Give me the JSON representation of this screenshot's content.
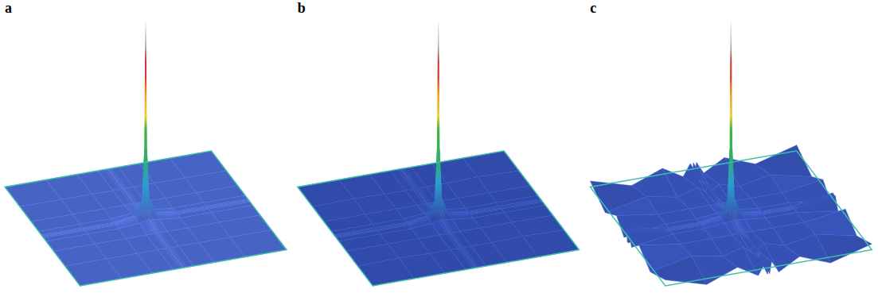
{
  "chart_data": [
    {
      "type": "surface",
      "title": "a",
      "tick_labels": false,
      "color": "#4763c3",
      "x": [
        -1,
        -0.6,
        -0.3,
        -0.1,
        -0.03,
        -0.01,
        0,
        0.01,
        0.03,
        0.1,
        0.3,
        0.6,
        1
      ],
      "y": [
        -1,
        -0.6,
        -0.3,
        -0.1,
        -0.03,
        -0.01,
        0,
        0.01,
        0.03,
        0.1,
        0.3,
        0.6,
        1
      ],
      "xlim": [
        -1,
        1
      ],
      "ylim": [
        -1,
        1
      ],
      "zlim": [
        -0.05,
        1
      ],
      "z": [
        [
          0,
          0,
          0,
          0,
          0,
          0,
          0,
          0,
          0,
          0,
          0,
          0,
          0
        ],
        [
          0,
          0,
          0,
          0,
          0,
          0,
          0,
          0,
          0,
          0,
          0,
          0,
          0
        ],
        [
          0,
          0,
          0,
          0,
          0,
          0,
          0,
          0,
          0,
          0,
          0,
          0,
          0
        ],
        [
          0,
          0,
          0,
          0.01,
          0.015,
          0.02,
          0.02,
          0.02,
          0.015,
          0.01,
          0,
          0,
          0
        ],
        [
          0,
          0,
          0,
          0.015,
          0.06,
          0.09,
          0.1,
          0.09,
          0.06,
          0.015,
          0,
          0,
          0
        ],
        [
          0,
          0,
          0,
          0.02,
          0.09,
          0.3,
          0.35,
          0.3,
          0.09,
          0.02,
          0,
          0,
          0
        ],
        [
          0,
          0,
          0,
          0.02,
          0.1,
          0.35,
          1,
          0.35,
          0.1,
          0.02,
          0,
          0,
          0
        ],
        [
          0,
          0,
          0,
          0.02,
          0.09,
          0.3,
          0.35,
          0.3,
          0.09,
          0.02,
          0,
          0,
          0
        ],
        [
          0,
          0,
          0,
          0.015,
          0.06,
          0.09,
          0.1,
          0.09,
          0.06,
          0.015,
          0,
          0,
          0
        ],
        [
          0,
          0,
          0,
          0.01,
          0.015,
          0.02,
          0.02,
          0.02,
          0.015,
          0.01,
          0,
          0,
          0
        ],
        [
          0,
          0,
          0,
          0,
          0,
          0,
          0,
          0,
          0,
          0,
          0,
          0,
          0
        ],
        [
          0,
          0,
          0,
          0,
          0,
          0,
          0,
          0,
          0,
          0,
          0,
          0,
          0
        ],
        [
          0,
          0,
          0,
          0,
          0,
          0,
          0,
          0,
          0,
          0,
          0,
          0,
          0
        ]
      ]
    },
    {
      "type": "surface",
      "title": "b",
      "tick_labels": false,
      "color": "#2f4aa8",
      "x": [
        -1,
        -0.6,
        -0.3,
        -0.1,
        -0.03,
        -0.01,
        0,
        0.01,
        0.03,
        0.1,
        0.3,
        0.6,
        1
      ],
      "y": [
        -1,
        -0.6,
        -0.3,
        -0.1,
        -0.03,
        -0.01,
        0,
        0.01,
        0.03,
        0.1,
        0.3,
        0.6,
        1
      ],
      "xlim": [
        -1,
        1
      ],
      "ylim": [
        -1,
        1
      ],
      "zlim": [
        -0.05,
        1
      ],
      "z": [
        [
          0,
          0,
          0,
          0,
          0,
          0,
          0,
          0,
          0,
          0,
          0,
          0,
          0
        ],
        [
          0,
          0.005,
          0,
          0,
          0,
          0,
          0.005,
          0,
          0,
          0,
          0,
          0.005,
          0
        ],
        [
          0,
          0,
          0,
          0,
          0,
          0,
          0,
          0,
          0,
          0,
          0,
          0,
          0
        ],
        [
          0,
          0,
          0,
          0.01,
          0.015,
          0.02,
          0.02,
          0.02,
          0.015,
          0.01,
          0,
          0,
          0
        ],
        [
          0,
          0,
          0,
          0.015,
          0.06,
          0.09,
          0.1,
          0.09,
          0.06,
          0.015,
          0,
          0,
          0
        ],
        [
          0,
          0,
          0,
          0.02,
          0.09,
          0.3,
          0.35,
          0.3,
          0.09,
          0.02,
          0,
          0,
          0
        ],
        [
          0,
          0.005,
          0,
          0.02,
          0.1,
          0.35,
          1,
          0.35,
          0.1,
          0.02,
          0,
          0.005,
          0
        ],
        [
          0,
          0,
          0,
          0.02,
          0.09,
          0.3,
          0.35,
          0.3,
          0.09,
          0.02,
          0,
          0,
          0
        ],
        [
          0,
          0,
          0,
          0.015,
          0.06,
          0.09,
          0.1,
          0.09,
          0.06,
          0.015,
          0,
          0,
          0
        ],
        [
          0,
          0,
          0,
          0.01,
          0.015,
          0.02,
          0.02,
          0.02,
          0.015,
          0.01,
          0,
          0,
          0
        ],
        [
          0,
          0,
          0,
          0,
          0,
          0,
          0,
          0,
          0,
          0,
          0,
          0,
          0
        ],
        [
          0,
          0.005,
          0,
          0,
          0,
          0,
          0.005,
          0,
          0,
          0,
          0,
          0.005,
          0
        ],
        [
          0,
          0,
          0,
          0,
          0,
          0,
          0,
          0,
          0,
          0,
          0,
          0,
          0
        ]
      ]
    },
    {
      "type": "surface",
      "title": "c",
      "tick_labels": false,
      "color": "#3551b3",
      "x": [
        -1,
        -0.6,
        -0.3,
        -0.1,
        -0.03,
        -0.01,
        0,
        0.01,
        0.03,
        0.1,
        0.3,
        0.6,
        1
      ],
      "y": [
        -1,
        -0.6,
        -0.3,
        -0.1,
        -0.03,
        -0.01,
        0,
        0.01,
        0.03,
        0.1,
        0.3,
        0.6,
        1
      ],
      "xlim": [
        -1,
        1
      ],
      "ylim": [
        -1,
        1
      ],
      "zlim": [
        -0.05,
        1
      ],
      "z": [
        [
          0.03,
          -0.03,
          0.03,
          -0.03,
          0.03,
          -0.03,
          0.03,
          -0.03,
          0.03,
          -0.03,
          0.03,
          -0.03,
          0.03
        ],
        [
          -0.03,
          0.015,
          -0.015,
          0.015,
          -0.015,
          0.015,
          -0.015,
          0.015,
          -0.015,
          0.015,
          -0.015,
          0.015,
          -0.03
        ],
        [
          0.03,
          0,
          0,
          0,
          0,
          0,
          0,
          0,
          0,
          0,
          0,
          0,
          0.03
        ],
        [
          -0.03,
          0,
          0,
          0.01,
          0.015,
          0.02,
          0.02,
          0.02,
          0.015,
          0.01,
          0,
          0,
          -0.03
        ],
        [
          0.03,
          0,
          0,
          0.015,
          0.06,
          0.09,
          0.1,
          0.09,
          0.06,
          0.015,
          0,
          0,
          0.03
        ],
        [
          -0.03,
          0,
          0,
          0.02,
          0.09,
          0.3,
          0.35,
          0.3,
          0.09,
          0.02,
          0,
          0,
          -0.03
        ],
        [
          0.03,
          0,
          0,
          0.02,
          0.1,
          0.35,
          1,
          0.35,
          0.1,
          0.02,
          0,
          0,
          0.03
        ],
        [
          -0.03,
          0,
          0,
          0.02,
          0.09,
          0.3,
          0.35,
          0.3,
          0.09,
          0.02,
          0,
          0,
          -0.03
        ],
        [
          0.03,
          0,
          0,
          0.015,
          0.06,
          0.09,
          0.1,
          0.09,
          0.06,
          0.015,
          0,
          0,
          0.03
        ],
        [
          -0.03,
          0,
          0,
          0.01,
          0.015,
          0.02,
          0.02,
          0.02,
          0.015,
          0.01,
          0,
          0,
          -0.03
        ],
        [
          0.03,
          0,
          0,
          0,
          0,
          0,
          0,
          0,
          0,
          0,
          0,
          0,
          0.03
        ],
        [
          -0.03,
          0.015,
          -0.015,
          0.015,
          -0.015,
          0.015,
          -0.015,
          0.015,
          -0.015,
          0.015,
          -0.015,
          0.015,
          -0.03
        ],
        [
          0.03,
          -0.03,
          0.03,
          -0.03,
          0.03,
          -0.03,
          0.03,
          -0.03,
          0.03,
          -0.03,
          0.03,
          -0.03,
          0.03
        ]
      ]
    }
  ]
}
